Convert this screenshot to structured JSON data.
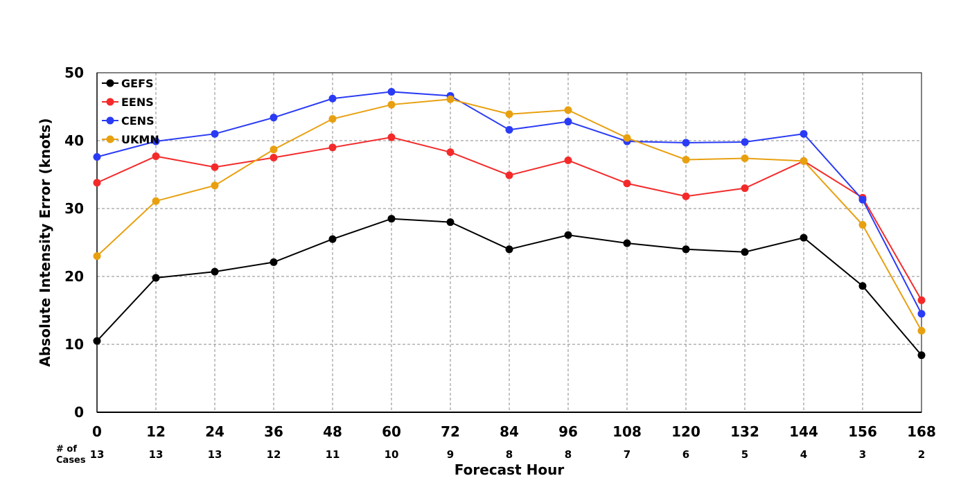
{
  "chart_data": {
    "type": "line",
    "xlabel": "Forecast Hour",
    "ylabel": "Absolute Intensity Error (knots)",
    "x": [
      0,
      12,
      24,
      36,
      48,
      60,
      72,
      84,
      96,
      108,
      120,
      132,
      144,
      156,
      168
    ],
    "xlim": [
      0,
      168
    ],
    "ylim": [
      0,
      50
    ],
    "yticks": [
      0,
      10,
      20,
      30,
      40,
      50
    ],
    "grid": true,
    "legend_position": "top-left",
    "cases_label": [
      "# of",
      "Cases"
    ],
    "cases": [
      13,
      13,
      13,
      12,
      11,
      10,
      9,
      8,
      8,
      7,
      6,
      5,
      4,
      3,
      2
    ],
    "series": [
      {
        "name": "GEFS",
        "color": "#000000",
        "values": [
          10.5,
          19.8,
          20.7,
          22.1,
          25.5,
          28.5,
          28.0,
          24.0,
          26.1,
          24.9,
          24.0,
          23.6,
          25.7,
          18.6,
          8.4
        ]
      },
      {
        "name": "EENS",
        "color": "#f42a2a",
        "values": [
          33.8,
          37.7,
          36.1,
          37.5,
          39.0,
          40.5,
          38.3,
          34.9,
          37.1,
          33.7,
          31.8,
          33.0,
          37.0,
          31.6,
          16.5
        ]
      },
      {
        "name": "CENS",
        "color": "#2a3bf5",
        "values": [
          37.6,
          39.9,
          41.0,
          43.4,
          46.2,
          47.2,
          46.6,
          41.6,
          42.8,
          39.9,
          39.7,
          39.8,
          41.0,
          31.3,
          14.5
        ]
      },
      {
        "name": "UKMN",
        "color": "#e8a010",
        "values": [
          23.0,
          31.1,
          33.4,
          38.7,
          43.2,
          45.3,
          46.1,
          43.9,
          44.5,
          40.4,
          37.2,
          37.4,
          37.0,
          27.6,
          12.0
        ]
      }
    ]
  }
}
